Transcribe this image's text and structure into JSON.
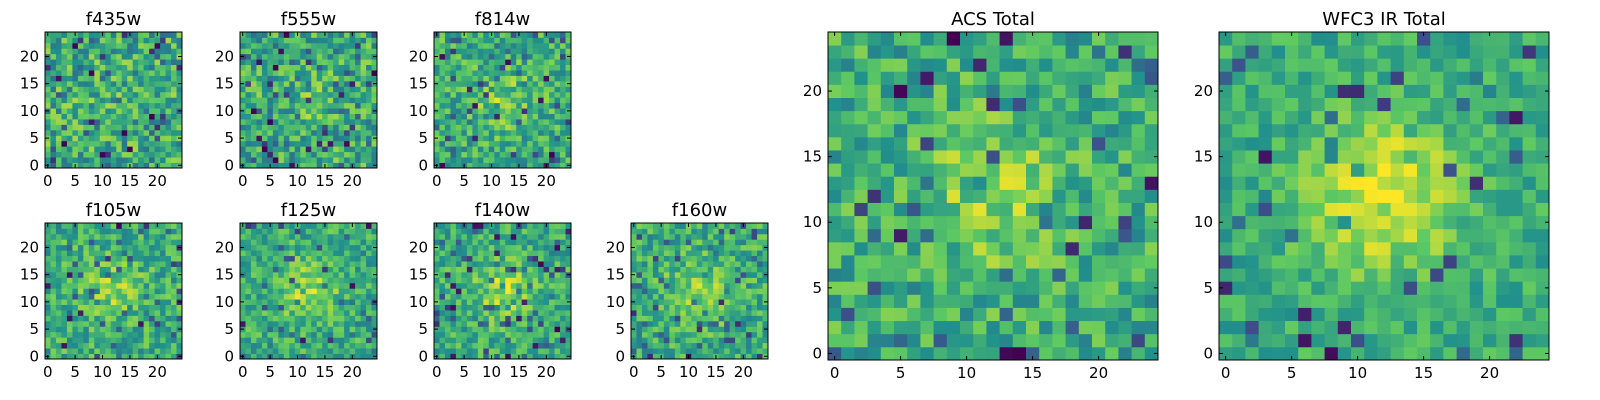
{
  "chart_data": [
    {
      "type": "heatmap",
      "title": "f435w",
      "xlim": [
        0,
        24
      ],
      "ylim": [
        0,
        24
      ],
      "x_ticks": [
        0,
        5,
        10,
        15,
        20
      ],
      "y_ticks": [
        0,
        5,
        10,
        15,
        20
      ],
      "grid": false,
      "colormap": "viridis",
      "seed": 11,
      "blob_strength": 0.05,
      "noise": 0.9,
      "values": [],
      "values_note": ""
    },
    {
      "type": "heatmap",
      "title": "f555w",
      "xlim": [
        0,
        24
      ],
      "ylim": [
        0,
        24
      ],
      "x_ticks": [
        0,
        5,
        10,
        15,
        20
      ],
      "y_ticks": [
        0,
        5,
        10,
        15,
        20
      ],
      "grid": false,
      "colormap": "viridis",
      "seed": 23,
      "blob_strength": 0.12,
      "noise": 0.85
    },
    {
      "type": "heatmap",
      "title": "f814w",
      "xlim": [
        0,
        24
      ],
      "ylim": [
        0,
        24
      ],
      "x_ticks": [
        0,
        5,
        10,
        15,
        20
      ],
      "y_ticks": [
        0,
        5,
        10,
        15,
        20
      ],
      "grid": false,
      "colormap": "viridis",
      "seed": 37,
      "blob_strength": 0.3,
      "noise": 0.75
    },
    {
      "type": "heatmap",
      "title": "f105w",
      "xlim": [
        0,
        24
      ],
      "ylim": [
        0,
        24
      ],
      "x_ticks": [
        0,
        5,
        10,
        15,
        20
      ],
      "y_ticks": [
        0,
        5,
        10,
        15,
        20
      ],
      "grid": false,
      "colormap": "viridis",
      "seed": 41,
      "blob_strength": 0.35,
      "noise": 0.7
    },
    {
      "type": "heatmap",
      "title": "f125w",
      "xlim": [
        0,
        24
      ],
      "ylim": [
        0,
        24
      ],
      "x_ticks": [
        0,
        5,
        10,
        15,
        20
      ],
      "y_ticks": [
        0,
        5,
        10,
        15,
        20
      ],
      "grid": false,
      "colormap": "viridis",
      "seed": 53,
      "blob_strength": 0.45,
      "noise": 0.65
    },
    {
      "type": "heatmap",
      "title": "f140w",
      "xlim": [
        0,
        24
      ],
      "ylim": [
        0,
        24
      ],
      "x_ticks": [
        0,
        5,
        10,
        15,
        20
      ],
      "y_ticks": [
        0,
        5,
        10,
        15,
        20
      ],
      "grid": false,
      "colormap": "viridis",
      "seed": 67,
      "blob_strength": 0.45,
      "noise": 0.65
    },
    {
      "type": "heatmap",
      "title": "f160w",
      "xlim": [
        0,
        24
      ],
      "ylim": [
        0,
        24
      ],
      "x_ticks": [
        0,
        5,
        10,
        15,
        20
      ],
      "y_ticks": [
        0,
        5,
        10,
        15,
        20
      ],
      "grid": false,
      "colormap": "viridis",
      "seed": 79,
      "blob_strength": 0.4,
      "noise": 0.7
    },
    {
      "type": "heatmap",
      "title": "ACS Total",
      "xlim": [
        0,
        24
      ],
      "ylim": [
        0,
        24
      ],
      "x_ticks": [
        0,
        5,
        10,
        15,
        20
      ],
      "y_ticks": [
        0,
        5,
        10,
        15,
        20
      ],
      "grid": false,
      "colormap": "viridis",
      "seed": 97,
      "blob_strength": 0.4,
      "noise": 0.7
    },
    {
      "type": "heatmap",
      "title": "WFC3 IR Total",
      "xlim": [
        0,
        24
      ],
      "ylim": [
        0,
        24
      ],
      "x_ticks": [
        0,
        5,
        10,
        15,
        20
      ],
      "y_ticks": [
        0,
        5,
        10,
        15,
        20
      ],
      "grid": false,
      "colormap": "viridis",
      "seed": 113,
      "blob_strength": 0.75,
      "noise": 0.5
    }
  ],
  "colors": {
    "viridis_stops": [
      "#440154",
      "#3b528b",
      "#21918c",
      "#5ec962",
      "#fde725"
    ],
    "axis": "#000000",
    "background": "#ffffff"
  }
}
